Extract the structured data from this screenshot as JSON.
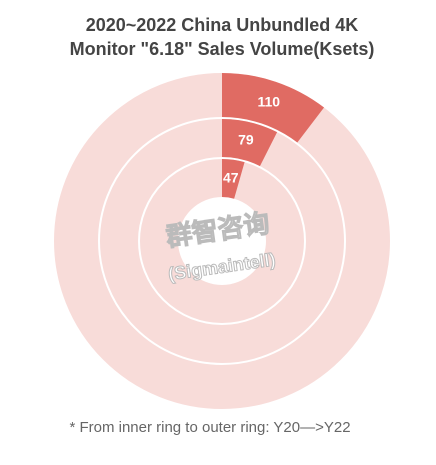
{
  "chart_data": {
    "type": "radial-bar",
    "title": [
      "2020~2022 China Unbundled 4K",
      "Monitor \"6.18\" Sales Volume(Ksets)"
    ],
    "values": [
      47,
      79,
      110
    ],
    "color": "#e06b63",
    "track_color": "#f8dcd9",
    "watermark": [
      "群智咨询",
      "(Sigmaintell)"
    ],
    "note": "* From inner ring to outer ring: Y20—>Y22"
  }
}
